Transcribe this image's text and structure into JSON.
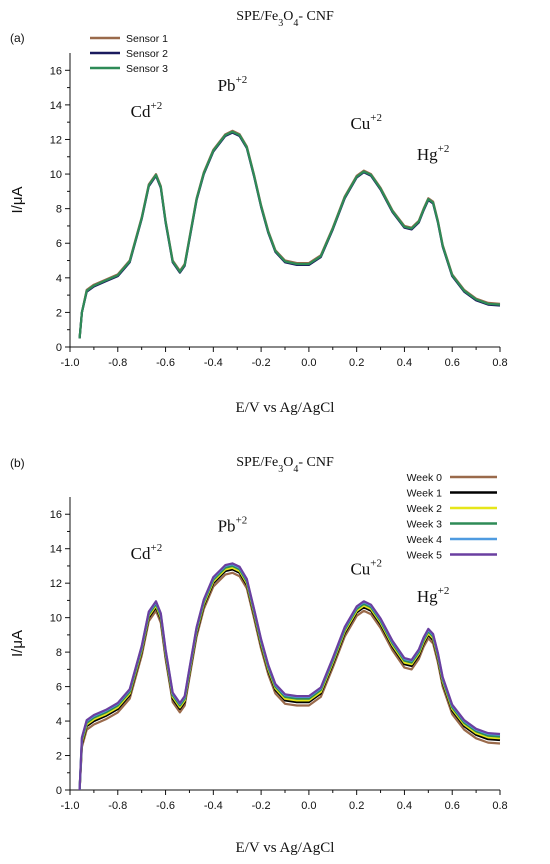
{
  "chart_data": [
    {
      "type": "line",
      "panel_label": "(a)",
      "title": "SPE/Fe3O4- CNF",
      "xlabel": "E/V vs Ag/AgCl",
      "ylabel": "I/μA",
      "xlim": [
        -1.0,
        0.8
      ],
      "ylim": [
        0,
        17
      ],
      "xticks": [
        "-1.0",
        "-0.8",
        "-0.6",
        "-0.4",
        "-0.2",
        "0.0",
        "0.2",
        "0.4",
        "0.6",
        "0.8"
      ],
      "yticks": [
        "0",
        "2",
        "4",
        "6",
        "8",
        "10",
        "12",
        "14",
        "16"
      ],
      "legend_position": "top-left",
      "annotations": [
        {
          "label": "Cd",
          "charge": "+2",
          "x": -0.68,
          "y": 13.3
        },
        {
          "label": "Pb",
          "charge": "+2",
          "x": -0.32,
          "y": 14.8
        },
        {
          "label": "Cu",
          "charge": "+2",
          "x": 0.24,
          "y": 12.6
        },
        {
          "label": "Hg",
          "charge": "+2",
          "x": 0.52,
          "y": 10.8
        }
      ],
      "x": [
        -0.96,
        -0.95,
        -0.93,
        -0.9,
        -0.85,
        -0.8,
        -0.75,
        -0.7,
        -0.67,
        -0.64,
        -0.62,
        -0.6,
        -0.57,
        -0.54,
        -0.52,
        -0.5,
        -0.47,
        -0.44,
        -0.4,
        -0.35,
        -0.32,
        -0.29,
        -0.26,
        -0.23,
        -0.2,
        -0.17,
        -0.14,
        -0.1,
        -0.05,
        0.0,
        0.05,
        0.1,
        0.15,
        0.2,
        0.23,
        0.26,
        0.3,
        0.35,
        0.4,
        0.43,
        0.46,
        0.48,
        0.5,
        0.52,
        0.54,
        0.56,
        0.6,
        0.65,
        0.7,
        0.75,
        0.8
      ],
      "series": [
        {
          "name": "Sensor 1",
          "color": "#9a6a4b",
          "values": [
            0.5,
            2.0,
            3.3,
            3.6,
            3.9,
            4.2,
            5.0,
            7.5,
            9.4,
            10.0,
            9.3,
            7.3,
            5.0,
            4.4,
            4.8,
            6.3,
            8.6,
            10.1,
            11.4,
            12.3,
            12.5,
            12.3,
            11.6,
            10.0,
            8.2,
            6.7,
            5.6,
            5.0,
            4.85,
            4.85,
            5.3,
            6.9,
            8.7,
            9.9,
            10.2,
            10.0,
            9.2,
            7.9,
            7.0,
            6.9,
            7.3,
            8.0,
            8.6,
            8.4,
            7.3,
            5.9,
            4.2,
            3.3,
            2.8,
            2.55,
            2.5
          ]
        },
        {
          "name": "Sensor 2",
          "color": "#1a1a5e",
          "values": [
            0.5,
            2.0,
            3.2,
            3.5,
            3.8,
            4.1,
            4.9,
            7.4,
            9.3,
            9.9,
            9.2,
            7.2,
            4.9,
            4.3,
            4.7,
            6.2,
            8.5,
            10.0,
            11.3,
            12.2,
            12.4,
            12.2,
            11.5,
            9.9,
            8.1,
            6.6,
            5.5,
            4.9,
            4.75,
            4.75,
            5.2,
            6.8,
            8.6,
            9.8,
            10.1,
            9.9,
            9.1,
            7.8,
            6.9,
            6.8,
            7.2,
            7.9,
            8.5,
            8.3,
            7.2,
            5.8,
            4.1,
            3.2,
            2.7,
            2.45,
            2.4
          ]
        },
        {
          "name": "Sensor 3",
          "color": "#2e8b57",
          "values": [
            0.5,
            2.0,
            3.25,
            3.55,
            3.85,
            4.15,
            4.95,
            7.45,
            9.35,
            9.95,
            9.25,
            7.25,
            4.95,
            4.35,
            4.75,
            6.25,
            8.55,
            10.05,
            11.35,
            12.25,
            12.45,
            12.25,
            11.55,
            9.95,
            8.15,
            6.65,
            5.55,
            4.95,
            4.8,
            4.8,
            5.25,
            6.85,
            8.65,
            9.85,
            10.15,
            9.95,
            9.15,
            7.85,
            6.95,
            6.85,
            7.25,
            7.95,
            8.55,
            8.35,
            7.25,
            5.85,
            4.15,
            3.25,
            2.75,
            2.5,
            2.45
          ]
        }
      ]
    },
    {
      "type": "line",
      "panel_label": "(b)",
      "title": "SPE/Fe3O4- CNF",
      "xlabel": "E/V vs Ag/AgCl",
      "ylabel": "I/μA",
      "xlim": [
        -1.0,
        0.8
      ],
      "ylim": [
        0,
        17
      ],
      "xticks": [
        "-1.0",
        "-0.8",
        "-0.6",
        "-0.4",
        "-0.2",
        "0.0",
        "0.2",
        "0.4",
        "0.6",
        "0.8"
      ],
      "yticks": [
        "0",
        "2",
        "4",
        "6",
        "8",
        "10",
        "12",
        "14",
        "16"
      ],
      "legend_position": "top-right",
      "annotations": [
        {
          "label": "Cd",
          "charge": "+2",
          "x": -0.68,
          "y": 13.4
        },
        {
          "label": "Pb",
          "charge": "+2",
          "x": -0.32,
          "y": 15.0
        },
        {
          "label": "Cu",
          "charge": "+2",
          "x": 0.24,
          "y": 12.5
        },
        {
          "label": "Hg",
          "charge": "+2",
          "x": 0.52,
          "y": 10.9
        }
      ],
      "x": [
        -0.96,
        -0.95,
        -0.93,
        -0.9,
        -0.85,
        -0.8,
        -0.75,
        -0.7,
        -0.67,
        -0.64,
        -0.62,
        -0.6,
        -0.57,
        -0.54,
        -0.52,
        -0.5,
        -0.47,
        -0.44,
        -0.4,
        -0.35,
        -0.32,
        -0.29,
        -0.26,
        -0.23,
        -0.2,
        -0.17,
        -0.14,
        -0.1,
        -0.05,
        0.0,
        0.05,
        0.1,
        0.15,
        0.2,
        0.23,
        0.26,
        0.3,
        0.35,
        0.4,
        0.43,
        0.46,
        0.48,
        0.5,
        0.52,
        0.54,
        0.56,
        0.6,
        0.65,
        0.7,
        0.75,
        0.8
      ],
      "series": [
        {
          "name": "Week 0",
          "color": "#9a6a4b",
          "values": [
            0.0,
            2.5,
            3.5,
            3.8,
            4.1,
            4.5,
            5.3,
            7.8,
            9.8,
            10.4,
            9.7,
            7.6,
            5.1,
            4.5,
            4.9,
            6.5,
            8.9,
            10.5,
            11.8,
            12.5,
            12.6,
            12.4,
            11.7,
            10.0,
            8.2,
            6.7,
            5.6,
            5.0,
            4.9,
            4.9,
            5.4,
            7.1,
            8.9,
            10.1,
            10.4,
            10.2,
            9.4,
            8.1,
            7.1,
            7.0,
            7.6,
            8.3,
            8.8,
            8.5,
            7.4,
            6.0,
            4.4,
            3.5,
            3.0,
            2.75,
            2.7
          ]
        },
        {
          "name": "Week 1",
          "color": "#000000",
          "values": [
            0.0,
            2.7,
            3.7,
            4.0,
            4.3,
            4.7,
            5.5,
            8.0,
            10.0,
            10.6,
            9.9,
            7.8,
            5.3,
            4.7,
            5.1,
            6.7,
            9.1,
            10.7,
            12.0,
            12.7,
            12.8,
            12.6,
            11.9,
            10.2,
            8.4,
            6.9,
            5.8,
            5.2,
            5.1,
            5.1,
            5.6,
            7.3,
            9.1,
            10.3,
            10.6,
            10.4,
            9.6,
            8.3,
            7.3,
            7.2,
            7.8,
            8.5,
            9.0,
            8.7,
            7.6,
            6.2,
            4.6,
            3.7,
            3.2,
            2.95,
            2.9
          ]
        },
        {
          "name": "Week 2",
          "color": "#e6e619",
          "values": [
            0.0,
            2.8,
            3.8,
            4.1,
            4.4,
            4.8,
            5.6,
            8.1,
            10.1,
            10.7,
            10.0,
            7.9,
            5.4,
            4.8,
            5.2,
            6.8,
            9.2,
            10.8,
            12.1,
            12.8,
            12.9,
            12.7,
            12.0,
            10.3,
            8.5,
            7.0,
            5.9,
            5.3,
            5.2,
            5.2,
            5.7,
            7.4,
            9.2,
            10.4,
            10.7,
            10.5,
            9.7,
            8.4,
            7.4,
            7.3,
            7.9,
            8.6,
            9.1,
            8.8,
            7.7,
            6.3,
            4.7,
            3.8,
            3.3,
            3.05,
            3.0
          ]
        },
        {
          "name": "Week 3",
          "color": "#2e8b57",
          "values": [
            0.0,
            2.9,
            3.9,
            4.2,
            4.5,
            4.9,
            5.7,
            8.2,
            10.2,
            10.8,
            10.1,
            8.0,
            5.5,
            4.9,
            5.3,
            6.9,
            9.3,
            10.9,
            12.2,
            12.9,
            13.0,
            12.8,
            12.1,
            10.4,
            8.6,
            7.1,
            6.0,
            5.4,
            5.3,
            5.3,
            5.8,
            7.5,
            9.3,
            10.5,
            10.8,
            10.6,
            9.8,
            8.5,
            7.5,
            7.4,
            8.0,
            8.7,
            9.2,
            8.9,
            7.8,
            6.4,
            4.8,
            3.9,
            3.4,
            3.15,
            3.1
          ]
        },
        {
          "name": "Week 4",
          "color": "#4f9be0",
          "values": [
            0.0,
            3.0,
            4.0,
            4.3,
            4.6,
            5.0,
            5.8,
            8.3,
            10.3,
            10.9,
            10.2,
            8.1,
            5.6,
            5.0,
            5.4,
            7.0,
            9.4,
            11.0,
            12.3,
            13.0,
            13.1,
            12.9,
            12.2,
            10.5,
            8.7,
            7.2,
            6.1,
            5.5,
            5.4,
            5.4,
            5.9,
            7.6,
            9.4,
            10.6,
            10.9,
            10.7,
            9.9,
            8.6,
            7.6,
            7.5,
            8.1,
            8.8,
            9.3,
            9.0,
            7.9,
            6.5,
            4.9,
            4.0,
            3.5,
            3.25,
            3.2
          ]
        },
        {
          "name": "Week 5",
          "color": "#6a3fa0",
          "values": [
            0.0,
            3.05,
            4.05,
            4.35,
            4.65,
            5.05,
            5.85,
            8.35,
            10.35,
            10.95,
            10.25,
            8.15,
            5.65,
            5.05,
            5.45,
            7.05,
            9.45,
            11.05,
            12.35,
            13.05,
            13.15,
            12.95,
            12.25,
            10.55,
            8.75,
            7.25,
            6.15,
            5.55,
            5.45,
            5.45,
            5.95,
            7.65,
            9.45,
            10.65,
            10.95,
            10.75,
            9.95,
            8.65,
            7.65,
            7.55,
            8.15,
            8.85,
            9.35,
            9.05,
            7.95,
            6.55,
            4.95,
            4.05,
            3.55,
            3.3,
            3.25
          ]
        }
      ]
    }
  ]
}
